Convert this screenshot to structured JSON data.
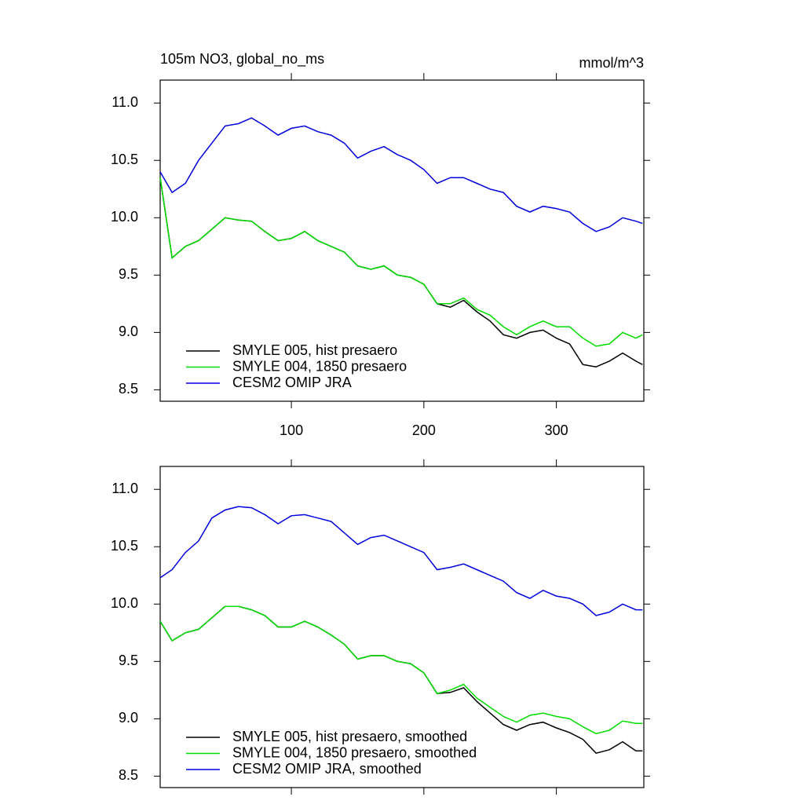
{
  "chart_data": [
    {
      "type": "line",
      "title": "105m NO3, global_no_ms",
      "units": "mmol/m^3",
      "x": [
        1,
        10,
        20,
        30,
        40,
        50,
        60,
        70,
        80,
        90,
        100,
        110,
        120,
        130,
        140,
        150,
        160,
        170,
        180,
        190,
        200,
        210,
        220,
        230,
        240,
        250,
        260,
        270,
        280,
        290,
        300,
        310,
        320,
        330,
        340,
        350,
        360,
        365
      ],
      "series": [
        {
          "name": "SMYLE 005, hist presaero",
          "color": "#000000",
          "values": [
            10.35,
            9.65,
            9.75,
            9.8,
            9.9,
            10.0,
            9.98,
            9.97,
            9.88,
            9.8,
            9.82,
            9.88,
            9.8,
            9.75,
            9.7,
            9.58,
            9.55,
            9.58,
            9.5,
            9.48,
            9.42,
            9.25,
            9.22,
            9.28,
            9.18,
            9.1,
            8.98,
            8.95,
            9.0,
            9.02,
            8.95,
            8.9,
            8.72,
            8.7,
            8.75,
            8.82,
            8.75,
            8.72
          ]
        },
        {
          "name": "SMYLE 004, 1850 presaero",
          "color": "#00dd00",
          "values": [
            10.35,
            9.65,
            9.75,
            9.8,
            9.9,
            10.0,
            9.98,
            9.97,
            9.88,
            9.8,
            9.82,
            9.88,
            9.8,
            9.75,
            9.7,
            9.58,
            9.55,
            9.58,
            9.5,
            9.48,
            9.42,
            9.25,
            9.25,
            9.3,
            9.2,
            9.15,
            9.05,
            8.98,
            9.05,
            9.1,
            9.05,
            9.05,
            8.95,
            8.88,
            8.9,
            9.0,
            8.95,
            8.98
          ]
        },
        {
          "name": "CESM2 OMIP JRA",
          "color": "#0000dd",
          "values": [
            10.4,
            10.22,
            10.3,
            10.5,
            10.65,
            10.8,
            10.82,
            10.87,
            10.8,
            10.72,
            10.78,
            10.8,
            10.75,
            10.72,
            10.65,
            10.52,
            10.58,
            10.62,
            10.55,
            10.5,
            10.42,
            10.3,
            10.35,
            10.35,
            10.3,
            10.25,
            10.22,
            10.1,
            10.05,
            10.1,
            10.08,
            10.05,
            9.95,
            9.88,
            9.92,
            10.0,
            9.97,
            9.95
          ]
        }
      ],
      "xlim": [
        1,
        366
      ],
      "xticks": [
        100,
        200,
        300
      ],
      "xtick_labels": true,
      "ylim": [
        8.4,
        11.2
      ],
      "yticks": [
        {
          "value": 8.5,
          "label": "8.5"
        },
        {
          "value": 9,
          "label": "9.0"
        },
        {
          "value": 9.5,
          "label": "9.5"
        },
        {
          "value": 10,
          "label": "10.0"
        },
        {
          "value": 10.5,
          "label": "10.5"
        },
        {
          "value": 11,
          "label": "11.0"
        }
      ],
      "legend": "lower left"
    },
    {
      "type": "line",
      "x": [
        1,
        10,
        20,
        30,
        40,
        50,
        60,
        70,
        80,
        90,
        100,
        110,
        120,
        130,
        140,
        150,
        160,
        170,
        180,
        190,
        200,
        210,
        220,
        230,
        240,
        250,
        260,
        270,
        280,
        290,
        300,
        310,
        320,
        330,
        340,
        350,
        360,
        365
      ],
      "series": [
        {
          "name": "SMYLE 005, hist presaero, smoothed",
          "color": "#000000",
          "values": [
            9.85,
            9.68,
            9.75,
            9.78,
            9.88,
            9.98,
            9.98,
            9.95,
            9.9,
            9.8,
            9.8,
            9.85,
            9.8,
            9.73,
            9.65,
            9.52,
            9.55,
            9.55,
            9.5,
            9.48,
            9.4,
            9.22,
            9.23,
            9.27,
            9.15,
            9.05,
            8.95,
            8.9,
            8.95,
            8.97,
            8.92,
            8.88,
            8.82,
            8.7,
            8.73,
            8.8,
            8.72,
            8.72
          ]
        },
        {
          "name": "SMYLE 004, 1850 presaero, smoothed",
          "color": "#00dd00",
          "values": [
            9.85,
            9.68,
            9.75,
            9.78,
            9.88,
            9.98,
            9.98,
            9.95,
            9.9,
            9.8,
            9.8,
            9.85,
            9.8,
            9.73,
            9.65,
            9.52,
            9.55,
            9.55,
            9.5,
            9.48,
            9.4,
            9.22,
            9.25,
            9.3,
            9.18,
            9.1,
            9.02,
            8.97,
            9.03,
            9.05,
            9.02,
            9.0,
            8.93,
            8.87,
            8.9,
            8.98,
            8.96,
            8.96
          ]
        },
        {
          "name": "CESM2 OMIP JRA, smoothed",
          "color": "#0000dd",
          "values": [
            10.23,
            10.3,
            10.45,
            10.55,
            10.75,
            10.82,
            10.85,
            10.84,
            10.78,
            10.7,
            10.77,
            10.78,
            10.75,
            10.72,
            10.62,
            10.52,
            10.58,
            10.6,
            10.55,
            10.5,
            10.45,
            10.3,
            10.32,
            10.35,
            10.3,
            10.25,
            10.2,
            10.1,
            10.05,
            10.12,
            10.07,
            10.05,
            10.0,
            9.9,
            9.93,
            10.0,
            9.95,
            9.95
          ]
        }
      ],
      "xlim": [
        1,
        366
      ],
      "xticks": [
        100,
        200,
        300
      ],
      "xtick_labels": false,
      "ylim": [
        8.4,
        11.2
      ],
      "yticks": [
        {
          "value": 8.5,
          "label": "8.5"
        },
        {
          "value": 9,
          "label": "9.0"
        },
        {
          "value": 9.5,
          "label": "9.5"
        },
        {
          "value": 10,
          "label": "10.0"
        },
        {
          "value": 10.5,
          "label": "10.5"
        },
        {
          "value": 11,
          "label": "11.0"
        }
      ],
      "legend": "lower left"
    }
  ]
}
